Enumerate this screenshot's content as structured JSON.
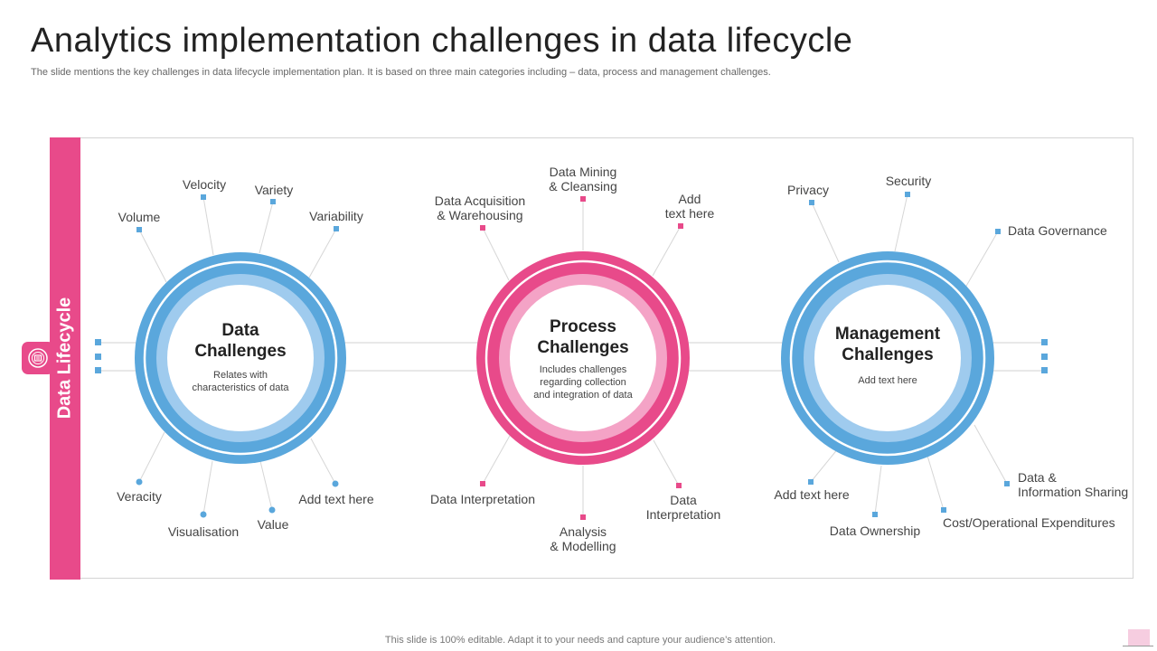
{
  "title": "Analytics  implementation  challenges in data lifecycle",
  "subtitle": "The slide mentions the key challenges in data lifecycle implementation plan. It is based on three main categories including – data, process and management challenges.",
  "sidebar": {
    "label": "Data Lifecycle",
    "icon": "data-lifecycle-icon"
  },
  "colors": {
    "pink": "#e84a8a",
    "blue": "#5aa7dc",
    "light_blue": "#9fcbee",
    "light_pink": "#f4a3c6"
  },
  "circles": [
    {
      "title": "Data\nChallenges",
      "desc": "Relates with\ncharacteristics of data",
      "labels": {
        "volume": "Volume",
        "velocity": "Velocity",
        "variety": "Variety",
        "variability": "Variability",
        "veracity": "Veracity",
        "visualisation": "Visualisation",
        "value": "Value",
        "add_text": "Add text here"
      }
    },
    {
      "title": "Process\nChallenges",
      "desc": "Includes challenges\nregarding collection\nand integration of data",
      "labels": {
        "acquisition": "Data Acquisition\n& Warehousing",
        "mining": "Data Mining\n& Cleansing",
        "add_text": "Add\ntext here",
        "interpretation_left": "Data Interpretation",
        "analysis": "Analysis\n& Modelling",
        "interpretation_right": "Data\nInterpretation"
      }
    },
    {
      "title": "Management\nChallenges",
      "desc": "Add text here",
      "labels": {
        "privacy": "Privacy",
        "security": "Security",
        "governance": "Data Governance",
        "add_text": "Add text here",
        "ownership": "Data Ownership",
        "cost": "Cost/Operational Expenditures",
        "sharing": "Data &\nInformation Sharing"
      }
    }
  ],
  "footer": "This slide is 100% editable. Adapt it to your needs and capture your audience’s attention."
}
